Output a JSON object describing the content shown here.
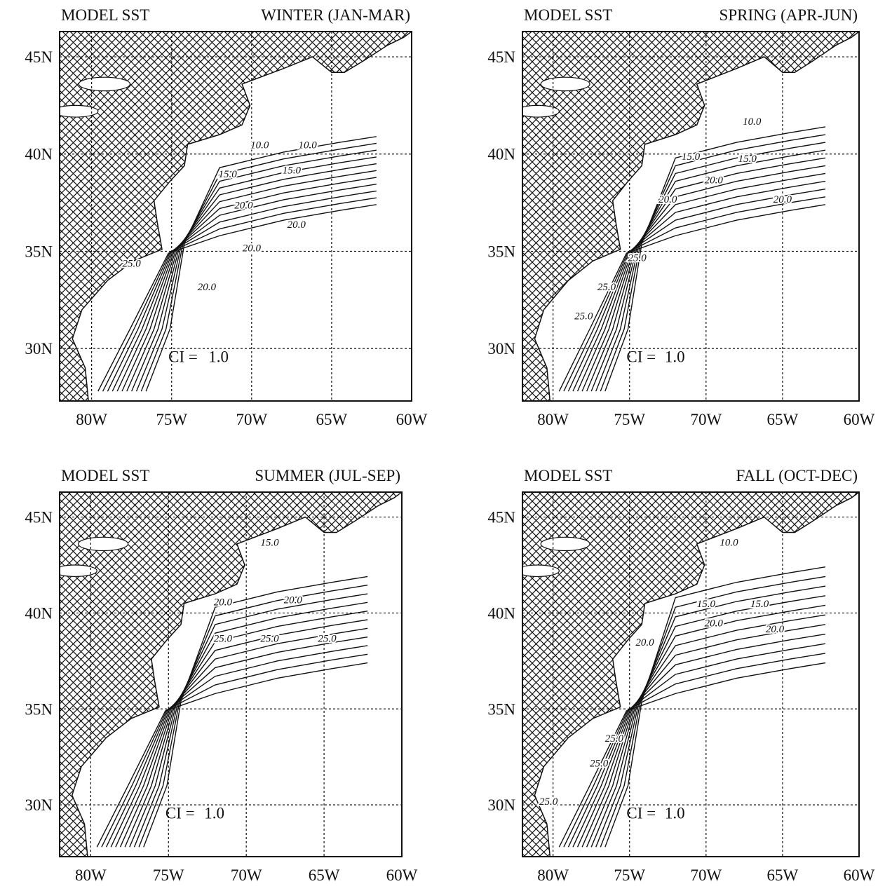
{
  "panels": [
    {
      "title": "MODEL SST",
      "season": "WINTER (JAN-MAR)",
      "ci_label": "CI =",
      "ci_value": "1.0",
      "contour_labels": [
        "10.0",
        "10.0",
        "15.0",
        "15.0",
        "20.0",
        "20.0",
        "20.0",
        "20.0",
        "25.0"
      ]
    },
    {
      "title": "MODEL SST",
      "season": "SPRING (APR-JUN)",
      "ci_label": "CI =",
      "ci_value": "1.0",
      "contour_labels": [
        "10.0",
        "15.0",
        "15.0",
        "20.0",
        "20.0",
        "20.0",
        "25.0",
        "25.0",
        "25.0"
      ]
    },
    {
      "title": "MODEL SST",
      "season": "SUMMER (JUL-SEP)",
      "ci_label": "CI =",
      "ci_value": "1.0",
      "contour_labels": [
        "15.0",
        "20.0",
        "20.0",
        "25.0",
        "25.0",
        "25.0"
      ]
    },
    {
      "title": "MODEL SST",
      "season": "FALL (OCT-DEC)",
      "ci_label": "CI =",
      "ci_value": "1.0",
      "contour_labels": [
        "10.0",
        "15.0",
        "15.0",
        "20.0",
        "20.0",
        "20.0",
        "25.0",
        "25.0",
        "25.0"
      ]
    }
  ],
  "x_axis_labels": [
    "80W",
    "75W",
    "70W",
    "65W",
    "60W"
  ],
  "y_axis_labels": [
    "45N",
    "40N",
    "35N",
    "30N"
  ]
}
